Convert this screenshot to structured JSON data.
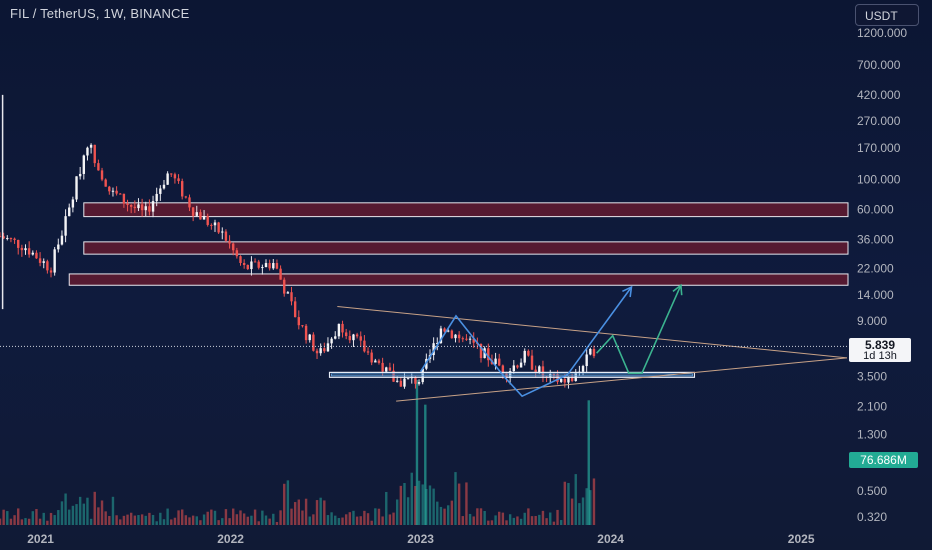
{
  "header": {
    "title": "FIL / TetherUS, 1W, BINANCE",
    "currency": "USDT"
  },
  "price_badge": {
    "price": "5.839",
    "countdown": "1d 13h"
  },
  "volume_badge": {
    "value": "76.686M"
  },
  "colors": {
    "up": "#26a69a",
    "down": "#ef5350",
    "zone_fill": "#5a1a30",
    "wedge": "#c8a287",
    "support_box": "#5b9bd5",
    "blue_path": "#4a90e2",
    "green_path": "#3bb38f"
  },
  "chart_data": {
    "type": "candlestick",
    "symbol": "FIL / TetherUS",
    "interval": "1W",
    "exchange": "BINANCE",
    "y_scale": "log",
    "ylim": [
      0.28,
      1500
    ],
    "xlim": [
      "2020-10-15",
      "2025-04-01"
    ],
    "y_ticks": [
      "1200.000",
      "700.000",
      "420.000",
      "270.000",
      "170.000",
      "100.000",
      "60.000",
      "36.000",
      "22.000",
      "14.000",
      "9.000",
      "3.500",
      "2.100",
      "1.300",
      "0.500",
      "0.320"
    ],
    "x_ticks": [
      "2021",
      "2022",
      "2023",
      "2024",
      "2025"
    ],
    "last_price": 5.839,
    "price_path_key_points": [
      {
        "date": "2020-10-15",
        "price": 38
      },
      {
        "date": "2020-12-01",
        "price": 32
      },
      {
        "date": "2021-01-20",
        "price": 22
      },
      {
        "date": "2021-02-25",
        "price": 60
      },
      {
        "date": "2021-04-01",
        "price": 190
      },
      {
        "date": "2021-05-15",
        "price": 80
      },
      {
        "date": "2021-07-20",
        "price": 55
      },
      {
        "date": "2021-09-05",
        "price": 115
      },
      {
        "date": "2021-10-20",
        "price": 60
      },
      {
        "date": "2021-12-20",
        "price": 38
      },
      {
        "date": "2022-01-25",
        "price": 22
      },
      {
        "date": "2022-03-25",
        "price": 24
      },
      {
        "date": "2022-05-10",
        "price": 9
      },
      {
        "date": "2022-06-20",
        "price": 5
      },
      {
        "date": "2022-08-01",
        "price": 8.5
      },
      {
        "date": "2022-09-15",
        "price": 5.5
      },
      {
        "date": "2022-11-15",
        "price": 3.2
      },
      {
        "date": "2023-01-01",
        "price": 3.3
      },
      {
        "date": "2023-02-10",
        "price": 8.2
      },
      {
        "date": "2023-04-10",
        "price": 6.0
      },
      {
        "date": "2023-06-15",
        "price": 3.8
      },
      {
        "date": "2023-07-20",
        "price": 4.9
      },
      {
        "date": "2023-09-01",
        "price": 3.3
      },
      {
        "date": "2023-10-20",
        "price": 3.3
      },
      {
        "date": "2023-12-05",
        "price": 5.839
      }
    ],
    "horizontal_zones": [
      {
        "low": 53,
        "high": 67
      },
      {
        "low": 28,
        "high": 34.5
      },
      {
        "low": 16.5,
        "high": 20
      }
    ],
    "support_box": {
      "low": 3.45,
      "high": 3.75,
      "start": "2022-07-10",
      "end": "2024-06-10"
    },
    "wedge_upper": [
      {
        "date": "2022-07-25",
        "price": 11.5
      },
      {
        "date": "2025-03-30",
        "price": 4.8
      }
    ],
    "wedge_lower": [
      {
        "date": "2022-11-15",
        "price": 2.3
      },
      {
        "date": "2025-03-30",
        "price": 4.8
      }
    ],
    "projection_blue": [
      {
        "date": "2023-01-01",
        "price": 3.8
      },
      {
        "date": "2023-03-10",
        "price": 9.8
      },
      {
        "date": "2023-06-10",
        "price": 3.5
      },
      {
        "date": "2023-07-15",
        "price": 2.5
      },
      {
        "date": "2023-10-10",
        "price": 3.6
      },
      {
        "date": "2024-02-10",
        "price": 16
      }
    ],
    "projection_green": [
      {
        "date": "2023-12-05",
        "price": 5.2
      },
      {
        "date": "2024-01-05",
        "price": 7.0
      },
      {
        "date": "2024-02-05",
        "price": 3.7
      },
      {
        "date": "2024-03-01",
        "price": 3.7
      },
      {
        "date": "2024-05-15",
        "price": 16.5
      }
    ],
    "volume": {
      "unit": "USDT",
      "last_value": "76.686M",
      "peaks": [
        {
          "date": "2022-12-25",
          "rel": 1.0
        },
        {
          "date": "2023-01-10",
          "rel": 0.83
        },
        {
          "date": "2023-11-20",
          "rel": 0.86
        }
      ]
    }
  }
}
